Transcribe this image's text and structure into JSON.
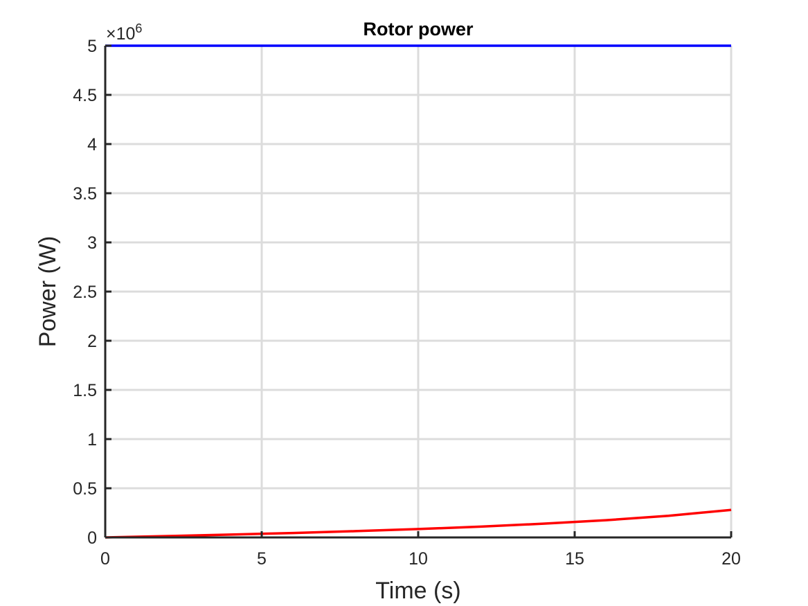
{
  "chart_data": {
    "type": "line",
    "title": "Rotor power",
    "xlabel": "Time (s)",
    "ylabel": "Power (W)",
    "xlim": [
      0,
      20
    ],
    "ylim": [
      0,
      5
    ],
    "y_exponent": {
      "prefix": "×10",
      "power": "6"
    },
    "xticks": [
      0,
      5,
      10,
      15,
      20
    ],
    "xtick_labels": [
      "0",
      "5",
      "10",
      "15",
      "20"
    ],
    "yticks": [
      0,
      0.5,
      1,
      1.5,
      2,
      2.5,
      3,
      3.5,
      4,
      4.5,
      5
    ],
    "ytick_labels": [
      "0",
      "0.5",
      "1",
      "1.5",
      "2",
      "2.5",
      "3",
      "3.5",
      "4",
      "4.5",
      "5"
    ],
    "grid": true,
    "series": [
      {
        "color": "#0000ff",
        "x": [
          0,
          20
        ],
        "y": [
          5,
          5
        ]
      },
      {
        "color": "#ff0000",
        "x": [
          0,
          2,
          4,
          6,
          8,
          10,
          12,
          14,
          16,
          18,
          20
        ],
        "y": [
          0,
          0.014,
          0.029,
          0.045,
          0.064,
          0.085,
          0.11,
          0.14,
          0.175,
          0.22,
          0.28
        ]
      }
    ]
  }
}
